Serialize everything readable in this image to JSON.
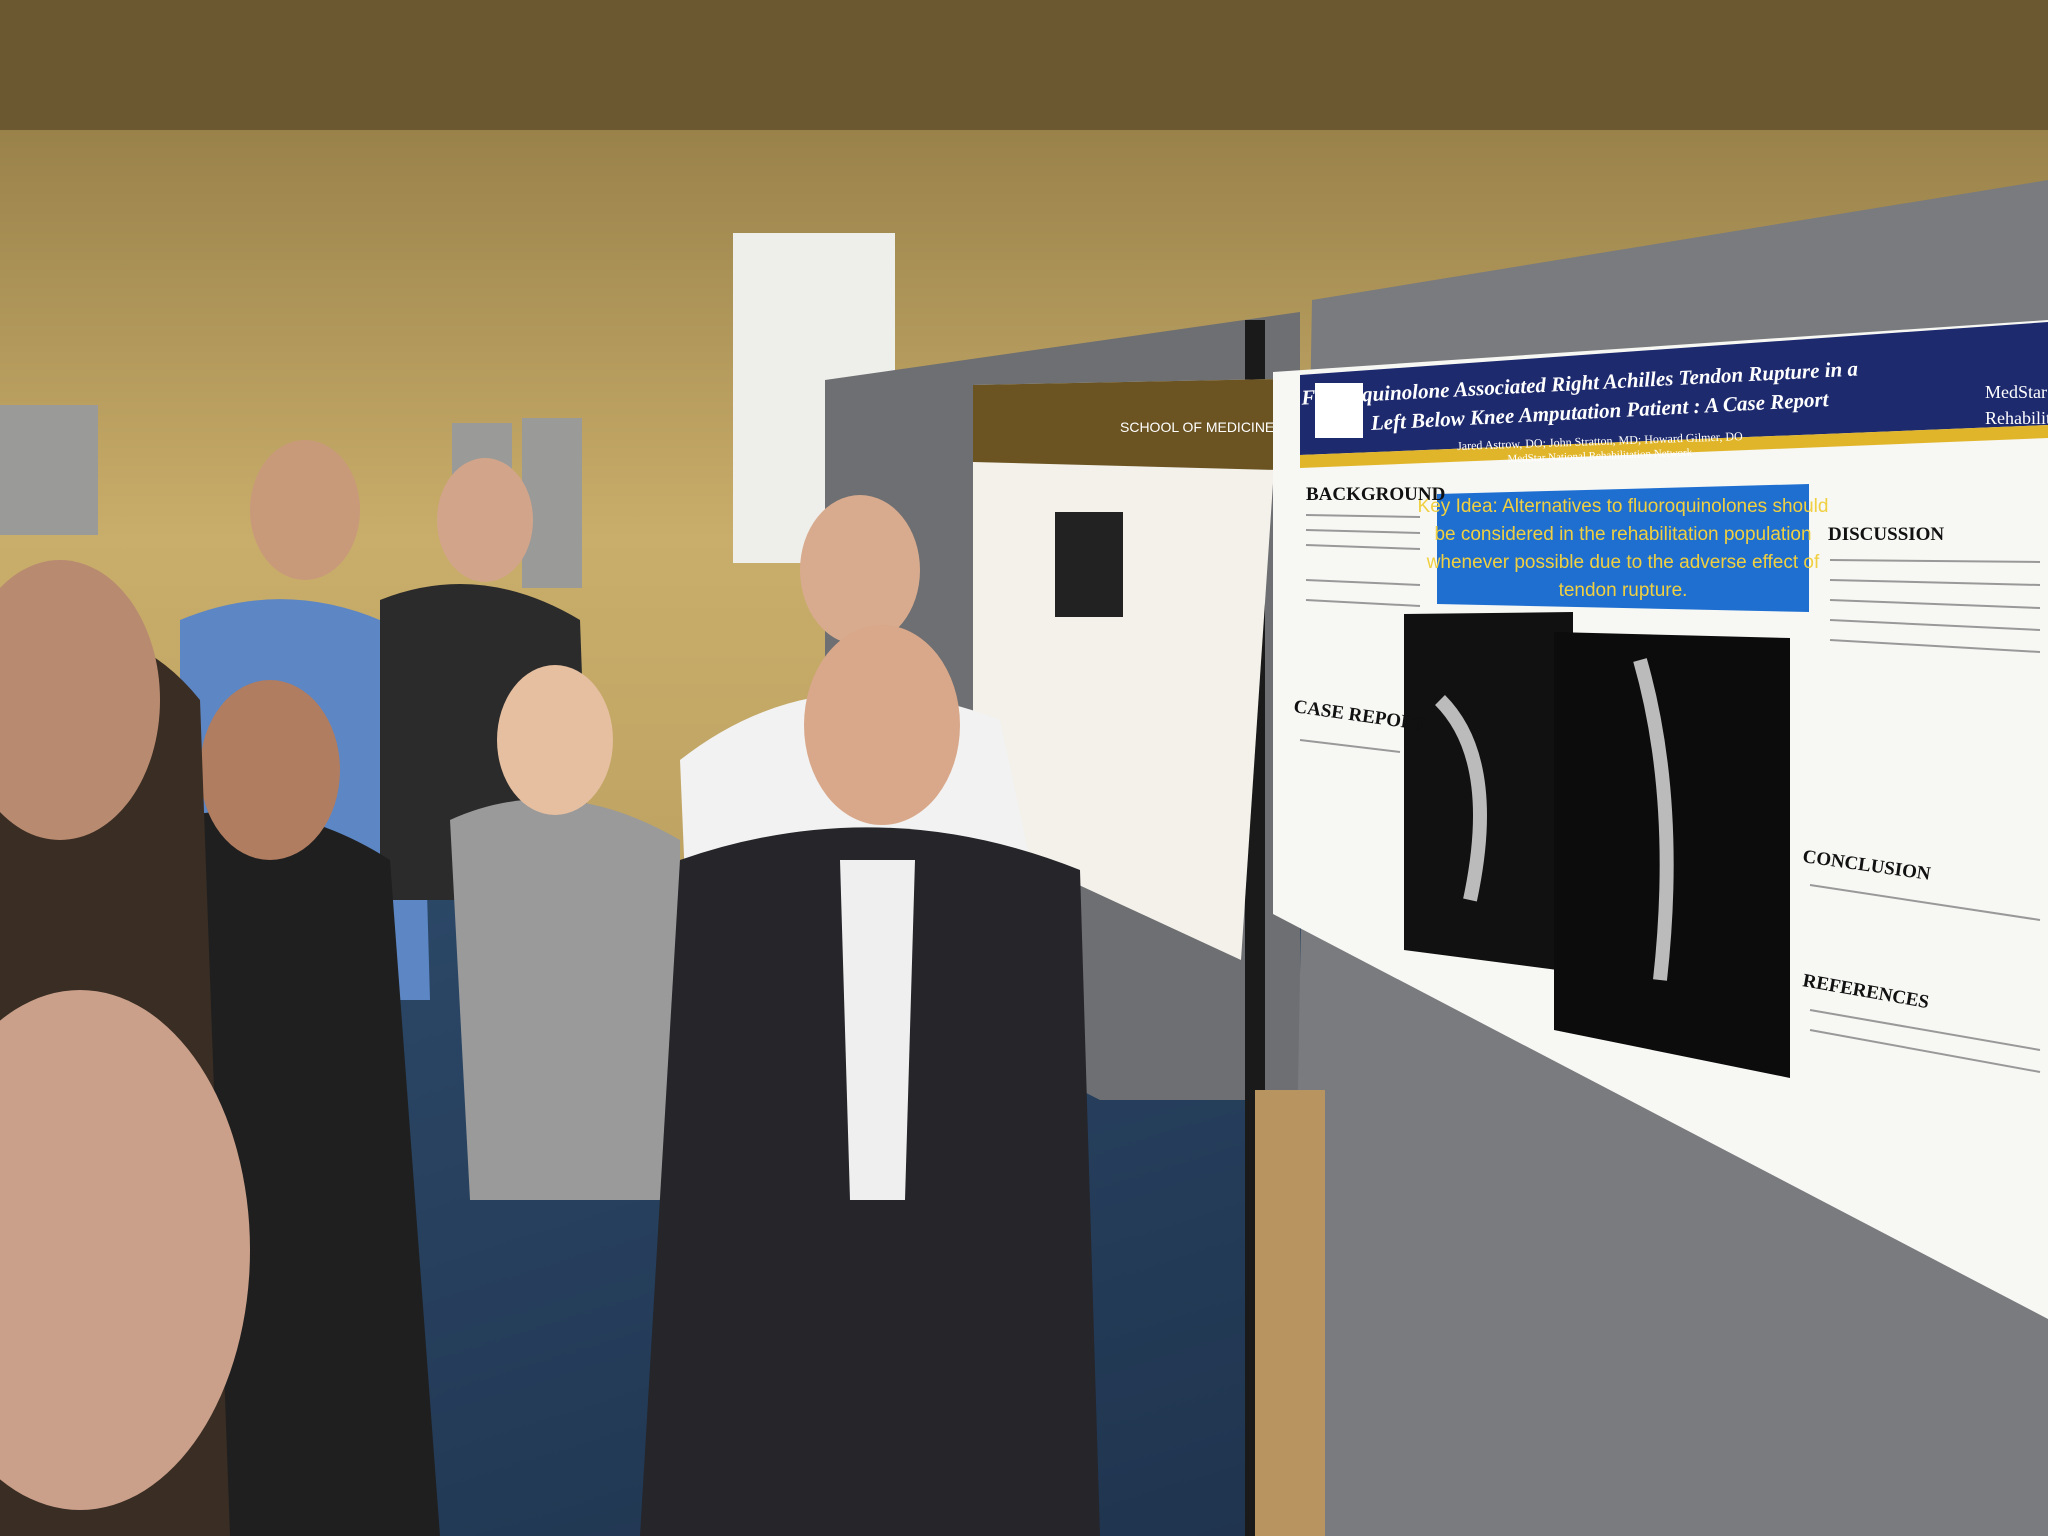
{
  "poster": {
    "title_lines": [
      "Fluoroquinolone Associated Right Achilles Tendon Rupture in a",
      "Left Below Knee Amputation Patient : A Case Report"
    ],
    "authors": "Jared Astrow, DO; John Stratton, MD; Howard Gilmer, DO",
    "affiliation": "MedStar National Rehabilitation Network",
    "logo_lines": [
      "MedStar",
      "Rehabilit"
    ],
    "key_idea_lines": [
      "Key Idea: Alternatives to fluoroquinolones should",
      "be considered in the rehabilitation population",
      "whenever possible due to the adverse effect of",
      "tendon rupture."
    ],
    "sections": [
      "BACKGROUND",
      "CASE REPORT",
      "DISCUSSION",
      "CONCLUSION",
      "REFERENCES"
    ]
  },
  "left_poster": {
    "header": "SCHOOL OF MEDICINE"
  }
}
